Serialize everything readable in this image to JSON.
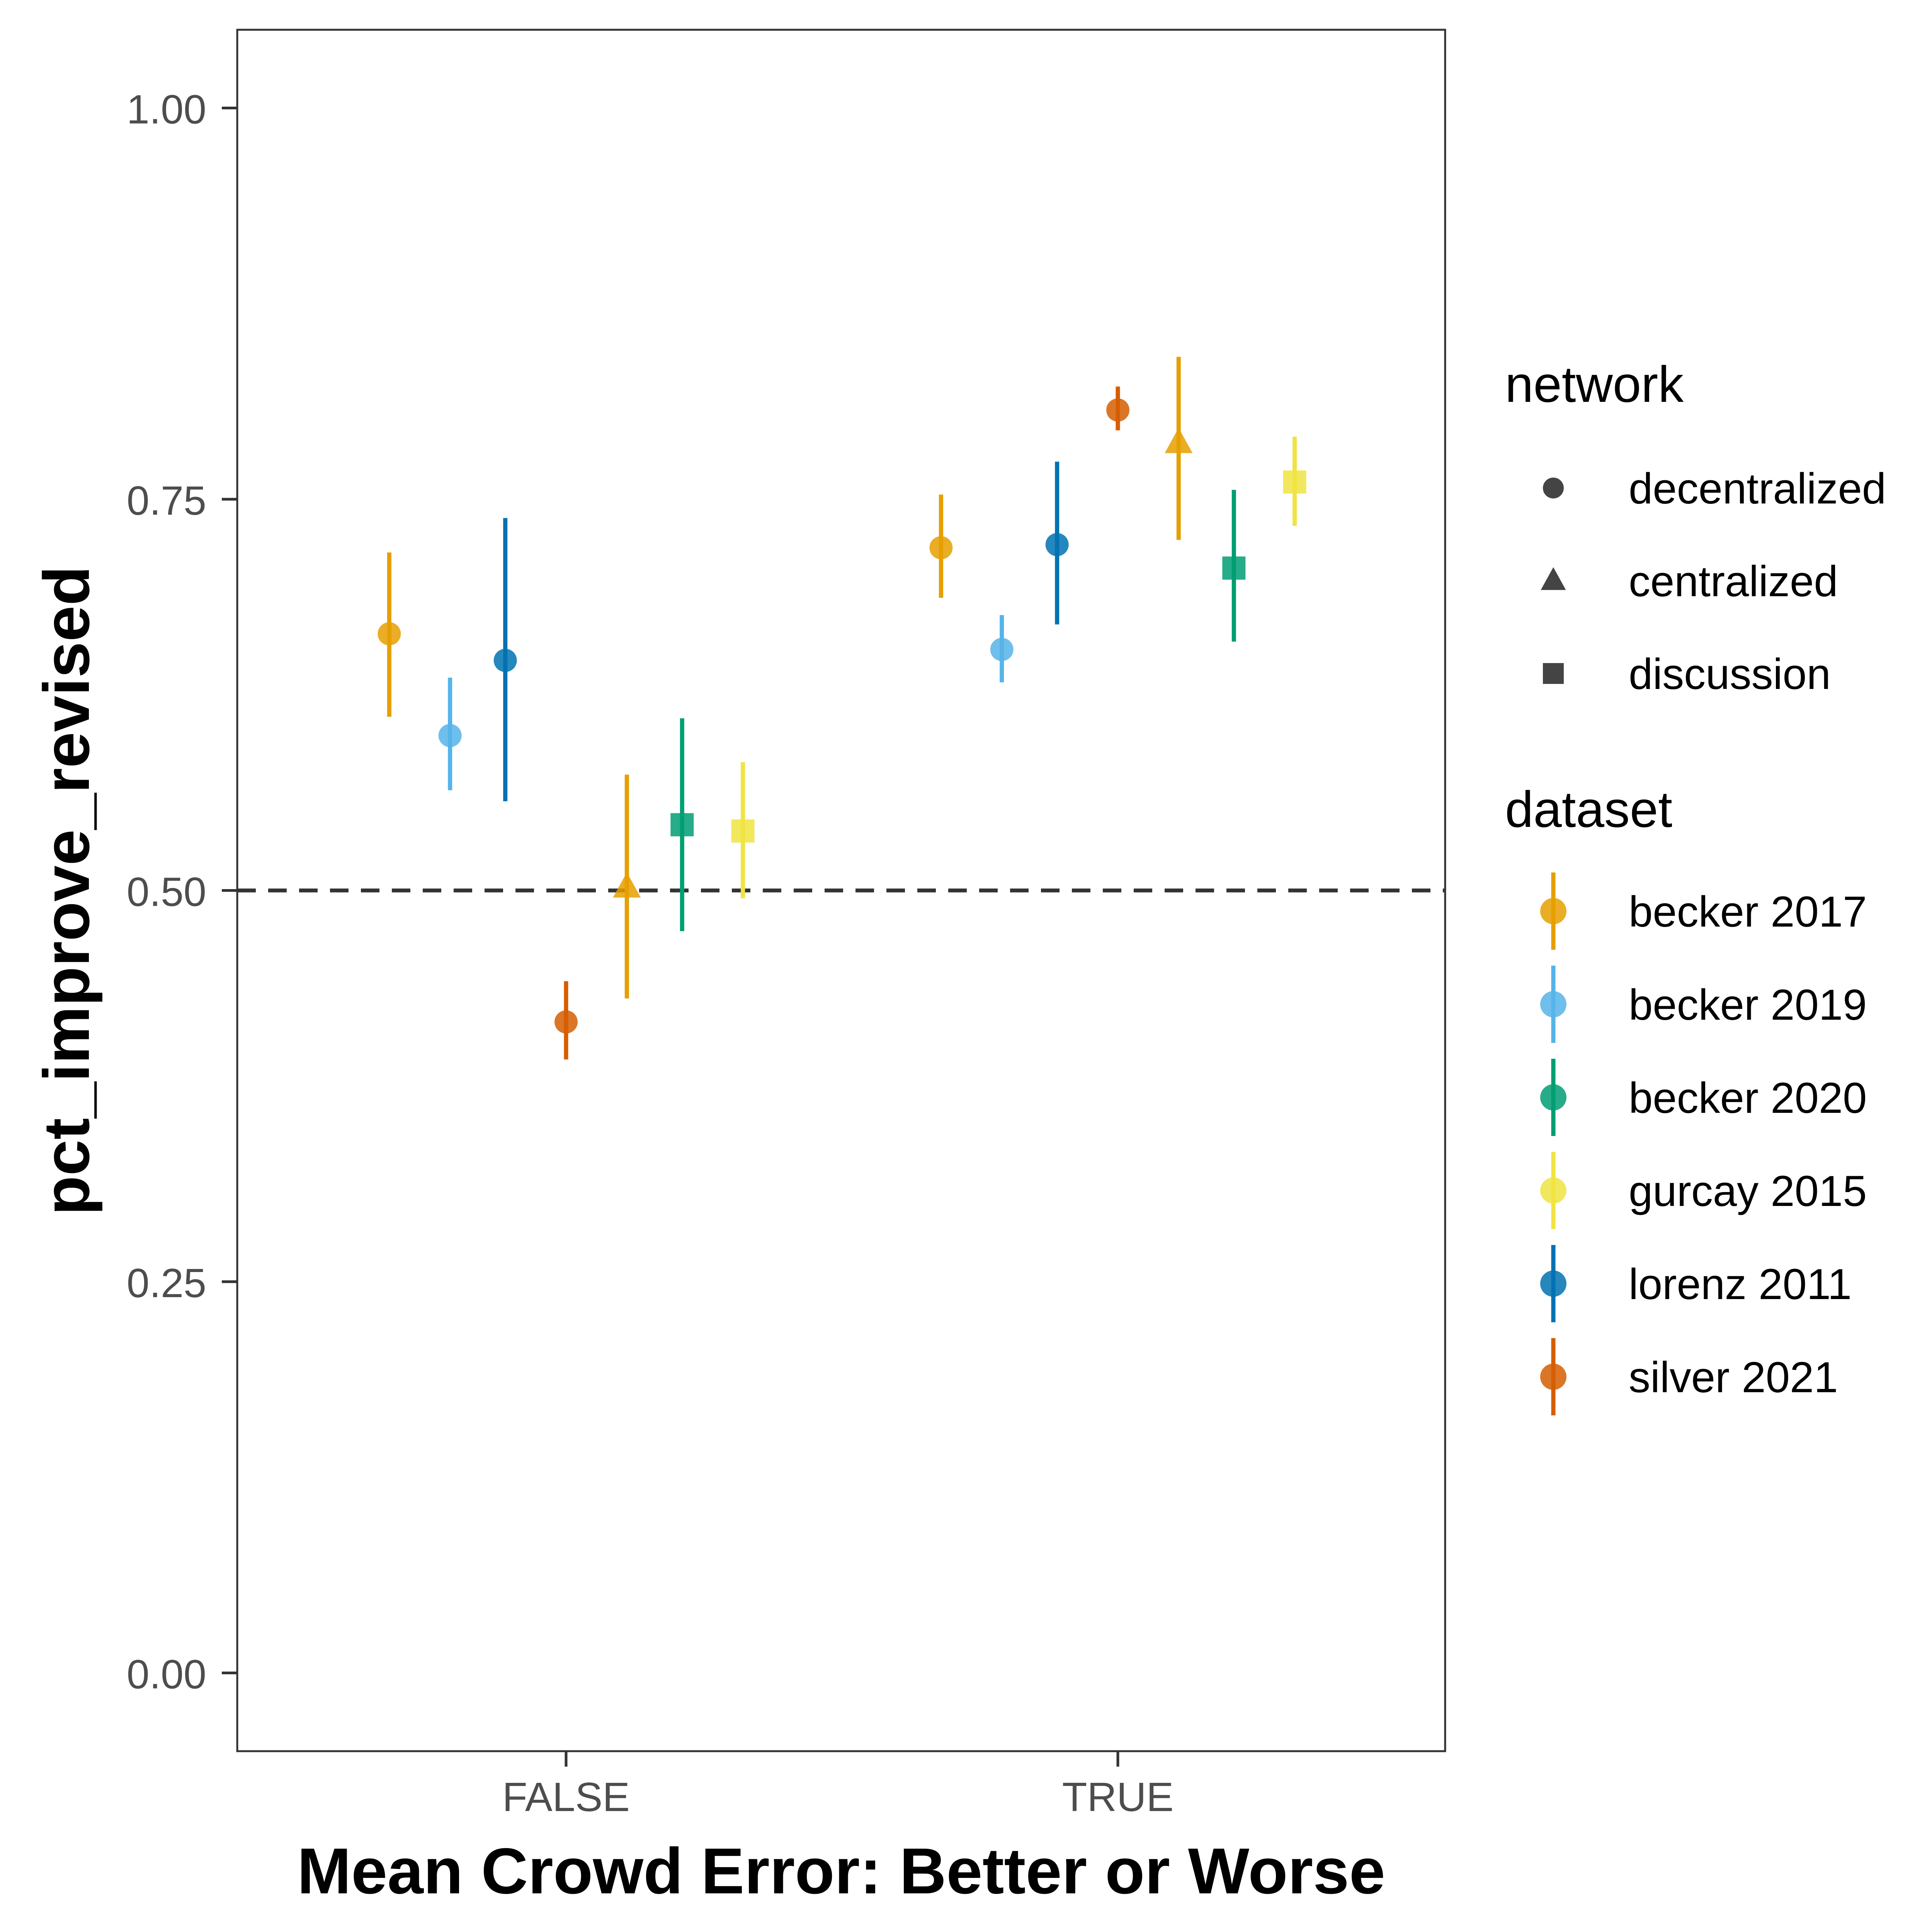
{
  "chart_data": {
    "type": "scatter",
    "title": "",
    "xlabel": "Mean Crowd Error: Better or Worse",
    "ylabel": "pct_improve_revised",
    "categories": [
      "FALSE",
      "TRUE"
    ],
    "ylim": [
      -0.05,
      1.05
    ],
    "yticks": [
      "0.00",
      "0.25",
      "0.50",
      "0.75",
      "1.00"
    ],
    "ytick_values": [
      0,
      0.25,
      0.5,
      0.75,
      1.0
    ],
    "reference_line": {
      "y": 0.5,
      "style": "dashed"
    },
    "grid": false,
    "legend_position": "right",
    "legend_network": {
      "title": "network",
      "items": [
        {
          "label": "decentralized",
          "shape": "circle"
        },
        {
          "label": "centralized",
          "shape": "triangle"
        },
        {
          "label": "discussion",
          "shape": "square"
        }
      ]
    },
    "legend_dataset": {
      "title": "dataset",
      "items": [
        {
          "label": "becker 2017",
          "color": "#E69F00"
        },
        {
          "label": "becker 2019",
          "color": "#56B4E9"
        },
        {
          "label": "becker 2020",
          "color": "#009E73"
        },
        {
          "label": "gurcay 2015",
          "color": "#F0E442"
        },
        {
          "label": "lorenz 2011",
          "color": "#0072B2"
        },
        {
          "label": "silver 2021",
          "color": "#D55E00"
        }
      ]
    },
    "points": [
      {
        "category": "FALSE",
        "dataset": "becker 2017",
        "network": "decentralized",
        "offset": -0.32,
        "y": 0.664,
        "ymin": 0.611,
        "ymax": 0.716
      },
      {
        "category": "FALSE",
        "dataset": "becker 2019",
        "network": "decentralized",
        "offset": -0.21,
        "y": 0.599,
        "ymin": 0.564,
        "ymax": 0.636
      },
      {
        "category": "FALSE",
        "dataset": "lorenz 2011",
        "network": "decentralized",
        "offset": -0.11,
        "y": 0.647,
        "ymin": 0.557,
        "ymax": 0.738
      },
      {
        "category": "FALSE",
        "dataset": "silver 2021",
        "network": "decentralized",
        "offset": 0.0,
        "y": 0.416,
        "ymin": 0.392,
        "ymax": 0.442
      },
      {
        "category": "FALSE",
        "dataset": "becker 2017",
        "network": "centralized",
        "offset": 0.11,
        "y": 0.502,
        "ymin": 0.431,
        "ymax": 0.574
      },
      {
        "category": "FALSE",
        "dataset": "becker 2020",
        "network": "discussion",
        "offset": 0.21,
        "y": 0.542,
        "ymin": 0.474,
        "ymax": 0.61
      },
      {
        "category": "FALSE",
        "dataset": "gurcay 2015",
        "network": "discussion",
        "offset": 0.32,
        "y": 0.538,
        "ymin": 0.495,
        "ymax": 0.582
      },
      {
        "category": "TRUE",
        "dataset": "becker 2017",
        "network": "decentralized",
        "offset": -0.32,
        "y": 0.719,
        "ymin": 0.687,
        "ymax": 0.753
      },
      {
        "category": "TRUE",
        "dataset": "becker 2019",
        "network": "decentralized",
        "offset": -0.21,
        "y": 0.654,
        "ymin": 0.633,
        "ymax": 0.676
      },
      {
        "category": "TRUE",
        "dataset": "lorenz 2011",
        "network": "decentralized",
        "offset": -0.11,
        "y": 0.721,
        "ymin": 0.67,
        "ymax": 0.774
      },
      {
        "category": "TRUE",
        "dataset": "silver 2021",
        "network": "decentralized",
        "offset": 0.0,
        "y": 0.807,
        "ymin": 0.794,
        "ymax": 0.822
      },
      {
        "category": "TRUE",
        "dataset": "becker 2017",
        "network": "centralized",
        "offset": 0.11,
        "y": 0.786,
        "ymin": 0.724,
        "ymax": 0.841
      },
      {
        "category": "TRUE",
        "dataset": "becker 2020",
        "network": "discussion",
        "offset": 0.21,
        "y": 0.706,
        "ymin": 0.659,
        "ymax": 0.756
      },
      {
        "category": "TRUE",
        "dataset": "gurcay 2015",
        "network": "discussion",
        "offset": 0.32,
        "y": 0.761,
        "ymin": 0.733,
        "ymax": 0.79
      }
    ]
  }
}
